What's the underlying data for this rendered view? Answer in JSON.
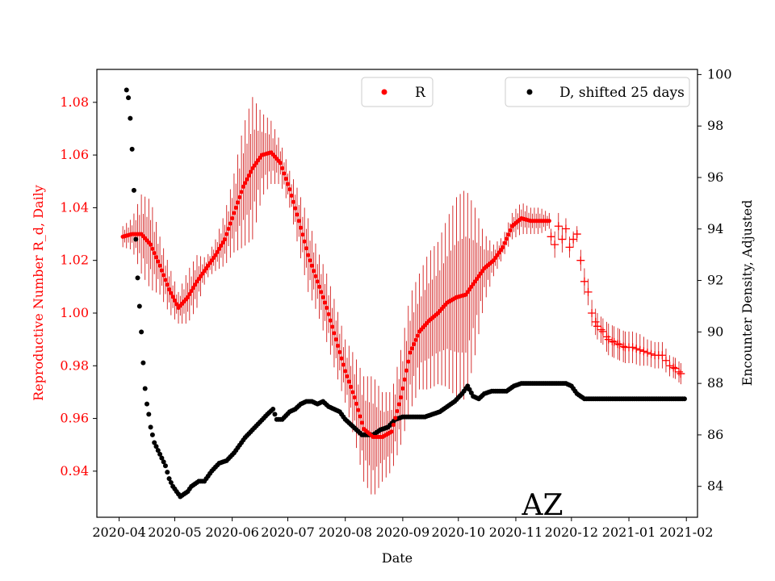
{
  "chart_data": {
    "type": "scatter",
    "title": "",
    "annotation": "AZ",
    "xlabel": "Date",
    "ylabel_left": "Reproductive Number R_d, Daily",
    "ylabel_right": "Encounter Density, Adjusted",
    "x_ticks": [
      "2020-04",
      "2020-05",
      "2020-06",
      "2020-07",
      "2020-08",
      "2020-09",
      "2020-10",
      "2020-11",
      "2020-12",
      "2021-01",
      "2021-02"
    ],
    "x_range": [
      "2020-03-20",
      "2021-02-07"
    ],
    "y_left_ticks": [
      "0.94",
      "0.96",
      "0.98",
      "1.00",
      "1.02",
      "1.04",
      "1.06",
      "1.08"
    ],
    "y_left_range": [
      0.9225,
      1.0925
    ],
    "y_right_ticks": [
      "84",
      "86",
      "88",
      "90",
      "92",
      "94",
      "96",
      "98",
      "100"
    ],
    "y_right_range": [
      82.8,
      100.2
    ],
    "colors": {
      "r_series": "#ff0000",
      "r_errorbar": "#cc0000",
      "d_series": "#000000",
      "left_axis_text": "#ff0000"
    },
    "legend_r": {
      "label": "R",
      "position": "top-center"
    },
    "legend_d": {
      "label": "D, shifted 25 days",
      "position": "top-right"
    },
    "series": [
      {
        "name": "R",
        "axis": "left",
        "marker": "dot",
        "points": [
          [
            "2020-04-03",
            1.029
          ],
          [
            "2020-04-08",
            1.03
          ],
          [
            "2020-04-13",
            1.03
          ],
          [
            "2020-04-18",
            1.026
          ],
          [
            "2020-04-23",
            1.018
          ],
          [
            "2020-04-28",
            1.009
          ],
          [
            "2020-05-03",
            1.002
          ],
          [
            "2020-05-08",
            1.006
          ],
          [
            "2020-05-13",
            1.012
          ],
          [
            "2020-05-18",
            1.017
          ],
          [
            "2020-05-23",
            1.022
          ],
          [
            "2020-05-28",
            1.028
          ],
          [
            "2020-06-02",
            1.038
          ],
          [
            "2020-06-07",
            1.048
          ],
          [
            "2020-06-12",
            1.055
          ],
          [
            "2020-06-17",
            1.06
          ],
          [
            "2020-06-22",
            1.061
          ],
          [
            "2020-06-27",
            1.057
          ],
          [
            "2020-07-02",
            1.047
          ],
          [
            "2020-07-07",
            1.035
          ],
          [
            "2020-07-12",
            1.022
          ],
          [
            "2020-07-17",
            1.012
          ],
          [
            "2020-07-22",
            1.002
          ],
          [
            "2020-07-27",
            0.99
          ],
          [
            "2020-08-01",
            0.978
          ],
          [
            "2020-08-06",
            0.968
          ],
          [
            "2020-08-11",
            0.956
          ],
          [
            "2020-08-16",
            0.953
          ],
          [
            "2020-08-21",
            0.953
          ],
          [
            "2020-08-26",
            0.955
          ],
          [
            "2020-08-31",
            0.968
          ],
          [
            "2020-09-05",
            0.985
          ],
          [
            "2020-09-10",
            0.993
          ],
          [
            "2020-09-15",
            0.997
          ],
          [
            "2020-09-20",
            1.0
          ],
          [
            "2020-09-25",
            1.004
          ],
          [
            "2020-09-30",
            1.006
          ],
          [
            "2020-10-05",
            1.007
          ],
          [
            "2020-10-10",
            1.012
          ],
          [
            "2020-10-15",
            1.017
          ],
          [
            "2020-10-20",
            1.02
          ],
          [
            "2020-10-25",
            1.025
          ],
          [
            "2020-10-30",
            1.033
          ],
          [
            "2020-11-04",
            1.036
          ],
          [
            "2020-11-09",
            1.035
          ],
          [
            "2020-11-14",
            1.035
          ],
          [
            "2020-11-19",
            1.035
          ]
        ],
        "error": [
          [
            "2020-04-03",
            0.004
          ],
          [
            "2020-04-08",
            0.006
          ],
          [
            "2020-04-13",
            0.015
          ],
          [
            "2020-04-18",
            0.017
          ],
          [
            "2020-04-23",
            0.011
          ],
          [
            "2020-04-28",
            0.009
          ],
          [
            "2020-05-03",
            0.006
          ],
          [
            "2020-05-08",
            0.01
          ],
          [
            "2020-05-13",
            0.01
          ],
          [
            "2020-05-18",
            0.004
          ],
          [
            "2020-05-23",
            0.006
          ],
          [
            "2020-05-28",
            0.01
          ],
          [
            "2020-06-02",
            0.015
          ],
          [
            "2020-06-07",
            0.023
          ],
          [
            "2020-06-12",
            0.027
          ],
          [
            "2020-06-17",
            0.016
          ],
          [
            "2020-06-22",
            0.012
          ],
          [
            "2020-06-27",
            0.008
          ],
          [
            "2020-07-02",
            0.007
          ],
          [
            "2020-07-07",
            0.011
          ],
          [
            "2020-07-12",
            0.014
          ],
          [
            "2020-07-17",
            0.012
          ],
          [
            "2020-07-22",
            0.013
          ],
          [
            "2020-07-27",
            0.013
          ],
          [
            "2020-08-01",
            0.012
          ],
          [
            "2020-08-06",
            0.016
          ],
          [
            "2020-08-11",
            0.02
          ],
          [
            "2020-08-16",
            0.023
          ],
          [
            "2020-08-21",
            0.017
          ],
          [
            "2020-08-26",
            0.015
          ],
          [
            "2020-08-31",
            0.018
          ],
          [
            "2020-09-05",
            0.022
          ],
          [
            "2020-09-10",
            0.022
          ],
          [
            "2020-09-15",
            0.026
          ],
          [
            "2020-09-20",
            0.027
          ],
          [
            "2020-09-25",
            0.032
          ],
          [
            "2020-09-30",
            0.038
          ],
          [
            "2020-10-05",
            0.04
          ],
          [
            "2020-10-10",
            0.028
          ],
          [
            "2020-10-15",
            0.013
          ],
          [
            "2020-10-20",
            0.006
          ],
          [
            "2020-10-25",
            0.004
          ],
          [
            "2020-10-30",
            0.005
          ],
          [
            "2020-11-04",
            0.006
          ],
          [
            "2020-11-09",
            0.005
          ],
          [
            "2020-11-14",
            0.005
          ],
          [
            "2020-11-19",
            0.003
          ]
        ]
      },
      {
        "name": "R",
        "axis": "left",
        "marker": "plus",
        "points": [
          [
            "2020-11-20",
            1.029
          ],
          [
            "2020-11-22",
            1.026
          ],
          [
            "2020-11-24",
            1.033
          ],
          [
            "2020-11-26",
            1.028
          ],
          [
            "2020-11-28",
            1.032
          ],
          [
            "2020-11-30",
            1.025
          ],
          [
            "2020-12-02",
            1.028
          ],
          [
            "2020-12-04",
            1.03
          ],
          [
            "2020-12-06",
            1.02
          ],
          [
            "2020-12-08",
            1.012
          ],
          [
            "2020-12-10",
            1.008
          ],
          [
            "2020-12-12",
            1.0
          ],
          [
            "2020-12-15",
            0.995
          ],
          [
            "2020-12-18",
            0.993
          ],
          [
            "2020-12-21",
            0.99
          ],
          [
            "2020-12-24",
            0.989
          ],
          [
            "2020-12-27",
            0.988
          ],
          [
            "2020-12-30",
            0.987
          ],
          [
            "2021-01-03",
            0.987
          ],
          [
            "2021-01-07",
            0.986
          ],
          [
            "2021-01-11",
            0.985
          ],
          [
            "2021-01-15",
            0.984
          ],
          [
            "2021-01-19",
            0.984
          ],
          [
            "2021-01-23",
            0.98
          ],
          [
            "2021-01-26",
            0.979
          ],
          [
            "2021-01-29",
            0.977
          ]
        ],
        "error": [
          [
            "2020-11-20",
            0.003
          ],
          [
            "2020-11-22",
            0.005
          ],
          [
            "2020-11-24",
            0.005
          ],
          [
            "2020-11-26",
            0.005
          ],
          [
            "2020-11-28",
            0.004
          ],
          [
            "2020-11-30",
            0.004
          ],
          [
            "2020-12-02",
            0.003
          ],
          [
            "2020-12-04",
            0.003
          ],
          [
            "2020-12-06",
            0.004
          ],
          [
            "2020-12-08",
            0.005
          ],
          [
            "2020-12-10",
            0.005
          ],
          [
            "2020-12-12",
            0.005
          ],
          [
            "2020-12-15",
            0.005
          ],
          [
            "2020-12-18",
            0.005
          ],
          [
            "2020-12-21",
            0.006
          ],
          [
            "2020-12-24",
            0.006
          ],
          [
            "2020-12-27",
            0.006
          ],
          [
            "2020-12-30",
            0.006
          ],
          [
            "2021-01-03",
            0.006
          ],
          [
            "2021-01-07",
            0.006
          ],
          [
            "2021-01-11",
            0.005
          ],
          [
            "2021-01-15",
            0.005
          ],
          [
            "2021-01-19",
            0.005
          ],
          [
            "2021-01-23",
            0.004
          ],
          [
            "2021-01-26",
            0.004
          ],
          [
            "2021-01-29",
            0.004
          ]
        ]
      },
      {
        "name": "D, shifted 25 days",
        "axis": "right",
        "marker": "dot",
        "points": [
          [
            "2020-04-05",
            99.4
          ],
          [
            "2020-04-06",
            99.1
          ],
          [
            "2020-04-07",
            98.3
          ],
          [
            "2020-04-08",
            97.1
          ],
          [
            "2020-04-09",
            95.5
          ],
          [
            "2020-04-10",
            93.6
          ],
          [
            "2020-04-11",
            92.1
          ],
          [
            "2020-04-12",
            91.0
          ],
          [
            "2020-04-13",
            90.0
          ],
          [
            "2020-04-14",
            88.8
          ],
          [
            "2020-04-15",
            87.8
          ],
          [
            "2020-04-16",
            87.2
          ],
          [
            "2020-04-17",
            86.8
          ],
          [
            "2020-04-18",
            86.3
          ],
          [
            "2020-04-19",
            86.0
          ],
          [
            "2020-04-20",
            85.7
          ],
          [
            "2020-04-22",
            85.4
          ],
          [
            "2020-04-24",
            85.1
          ],
          [
            "2020-04-26",
            84.8
          ],
          [
            "2020-04-28",
            84.3
          ],
          [
            "2020-04-30",
            84.0
          ],
          [
            "2020-05-02",
            83.8
          ],
          [
            "2020-05-04",
            83.6
          ],
          [
            "2020-05-06",
            83.7
          ],
          [
            "2020-05-08",
            83.8
          ],
          [
            "2020-05-10",
            84.0
          ],
          [
            "2020-05-12",
            84.1
          ],
          [
            "2020-05-14",
            84.2
          ],
          [
            "2020-05-17",
            84.2
          ],
          [
            "2020-05-21",
            84.6
          ],
          [
            "2020-05-25",
            84.9
          ],
          [
            "2020-05-29",
            85.0
          ],
          [
            "2020-06-02",
            85.3
          ],
          [
            "2020-06-05",
            85.6
          ],
          [
            "2020-06-08",
            85.9
          ],
          [
            "2020-06-12",
            86.2
          ],
          [
            "2020-06-16",
            86.5
          ],
          [
            "2020-06-20",
            86.8
          ],
          [
            "2020-06-23",
            87.0
          ],
          [
            "2020-06-25",
            86.6
          ],
          [
            "2020-06-28",
            86.6
          ],
          [
            "2020-07-02",
            86.9
          ],
          [
            "2020-07-05",
            87.0
          ],
          [
            "2020-07-08",
            87.2
          ],
          [
            "2020-07-11",
            87.3
          ],
          [
            "2020-07-14",
            87.3
          ],
          [
            "2020-07-17",
            87.2
          ],
          [
            "2020-07-20",
            87.3
          ],
          [
            "2020-07-23",
            87.1
          ],
          [
            "2020-07-26",
            87.0
          ],
          [
            "2020-07-29",
            86.9
          ],
          [
            "2020-08-01",
            86.6
          ],
          [
            "2020-08-04",
            86.4
          ],
          [
            "2020-08-07",
            86.2
          ],
          [
            "2020-08-10",
            86.0
          ],
          [
            "2020-08-13",
            86.0
          ],
          [
            "2020-08-16",
            86.0
          ],
          [
            "2020-08-20",
            86.2
          ],
          [
            "2020-08-24",
            86.3
          ],
          [
            "2020-08-28",
            86.6
          ],
          [
            "2020-09-01",
            86.7
          ],
          [
            "2020-09-05",
            86.7
          ],
          [
            "2020-09-09",
            86.7
          ],
          [
            "2020-09-13",
            86.7
          ],
          [
            "2020-09-17",
            86.8
          ],
          [
            "2020-09-21",
            86.9
          ],
          [
            "2020-09-25",
            87.1
          ],
          [
            "2020-09-29",
            87.3
          ],
          [
            "2020-10-03",
            87.6
          ],
          [
            "2020-10-06",
            87.9
          ],
          [
            "2020-10-09",
            87.5
          ],
          [
            "2020-10-12",
            87.4
          ],
          [
            "2020-10-15",
            87.6
          ],
          [
            "2020-10-19",
            87.7
          ],
          [
            "2020-10-23",
            87.7
          ],
          [
            "2020-10-27",
            87.7
          ],
          [
            "2020-10-31",
            87.9
          ],
          [
            "2020-11-04",
            88.0
          ],
          [
            "2020-11-08",
            88.0
          ],
          [
            "2020-11-12",
            88.0
          ],
          [
            "2020-11-16",
            88.0
          ],
          [
            "2020-11-20",
            88.0
          ],
          [
            "2020-11-24",
            88.0
          ],
          [
            "2020-11-28",
            88.0
          ],
          [
            "2020-12-01",
            87.9
          ],
          [
            "2020-12-04",
            87.6
          ],
          [
            "2020-12-08",
            87.4
          ],
          [
            "2020-12-15",
            87.4
          ],
          [
            "2020-12-22",
            87.4
          ],
          [
            "2020-12-29",
            87.4
          ],
          [
            "2021-01-05",
            87.4
          ],
          [
            "2021-01-12",
            87.4
          ],
          [
            "2021-01-19",
            87.4
          ],
          [
            "2021-01-26",
            87.4
          ],
          [
            "2021-01-31",
            87.4
          ]
        ]
      }
    ],
    "grid": false
  }
}
